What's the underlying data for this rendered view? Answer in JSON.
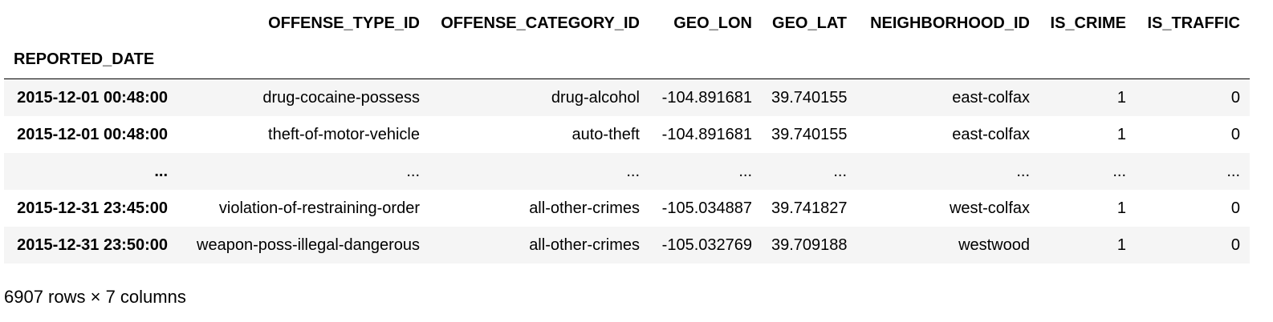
{
  "table": {
    "columns": [
      "OFFENSE_TYPE_ID",
      "OFFENSE_CATEGORY_ID",
      "GEO_LON",
      "GEO_LAT",
      "NEIGHBORHOOD_ID",
      "IS_CRIME",
      "IS_TRAFFIC"
    ],
    "index_name": "REPORTED_DATE",
    "rows": [
      {
        "index": "2015-12-01 00:48:00",
        "cells": [
          "drug-cocaine-possess",
          "drug-alcohol",
          "-104.891681",
          "39.740155",
          "east-colfax",
          "1",
          "0"
        ]
      },
      {
        "index": "2015-12-01 00:48:00",
        "cells": [
          "theft-of-motor-vehicle",
          "auto-theft",
          "-104.891681",
          "39.740155",
          "east-colfax",
          "1",
          "0"
        ]
      },
      {
        "index": "...",
        "cells": [
          "...",
          "...",
          "...",
          "...",
          "...",
          "...",
          "..."
        ]
      },
      {
        "index": "2015-12-31 23:45:00",
        "cells": [
          "violation-of-restraining-order",
          "all-other-crimes",
          "-105.034887",
          "39.741827",
          "west-colfax",
          "1",
          "0"
        ]
      },
      {
        "index": "2015-12-31 23:50:00",
        "cells": [
          "weapon-poss-illegal-dangerous",
          "all-other-crimes",
          "-105.032769",
          "39.709188",
          "westwood",
          "1",
          "0"
        ]
      }
    ]
  },
  "footer": {
    "shape_text": "6907 rows × 7 columns"
  }
}
